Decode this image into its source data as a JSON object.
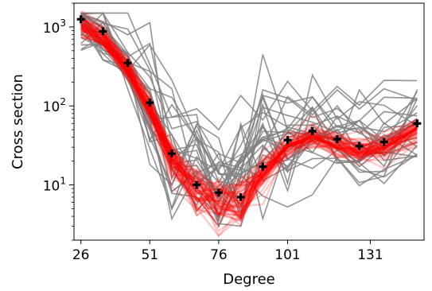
{
  "chart_data": {
    "type": "line",
    "title": "",
    "xlabel": "Degree",
    "ylabel": "Cross section",
    "xlim": [
      23.5,
      150.5
    ],
    "ylim": [
      2.0,
      2000
    ],
    "yscale": "log",
    "grid": false,
    "xticks": [
      26,
      51,
      76,
      101,
      131
    ],
    "xtick_labels": [
      "26",
      "51",
      "76",
      "101",
      "131"
    ],
    "yticks": [
      10,
      100,
      1000
    ],
    "ytick_labels": [
      "10^1",
      "10^2",
      "10^3"
    ],
    "x": [
      26,
      34,
      43,
      51,
      59,
      68,
      76,
      84,
      92,
      101,
      110,
      119,
      127,
      136,
      148
    ],
    "observed": {
      "marker": "plus",
      "color": "#000000",
      "values": [
        1250,
        880,
        350,
        110,
        25,
        10,
        8,
        7,
        17,
        37,
        48,
        38,
        31,
        35,
        60
      ]
    },
    "prior_samples": {
      "color": "#808080",
      "count": 28
    },
    "posterior_samples": {
      "color": "#ff0000",
      "count": 60
    },
    "colors": {
      "prior": "#808080",
      "posterior": "#ff0000",
      "observed": "#000000"
    }
  }
}
